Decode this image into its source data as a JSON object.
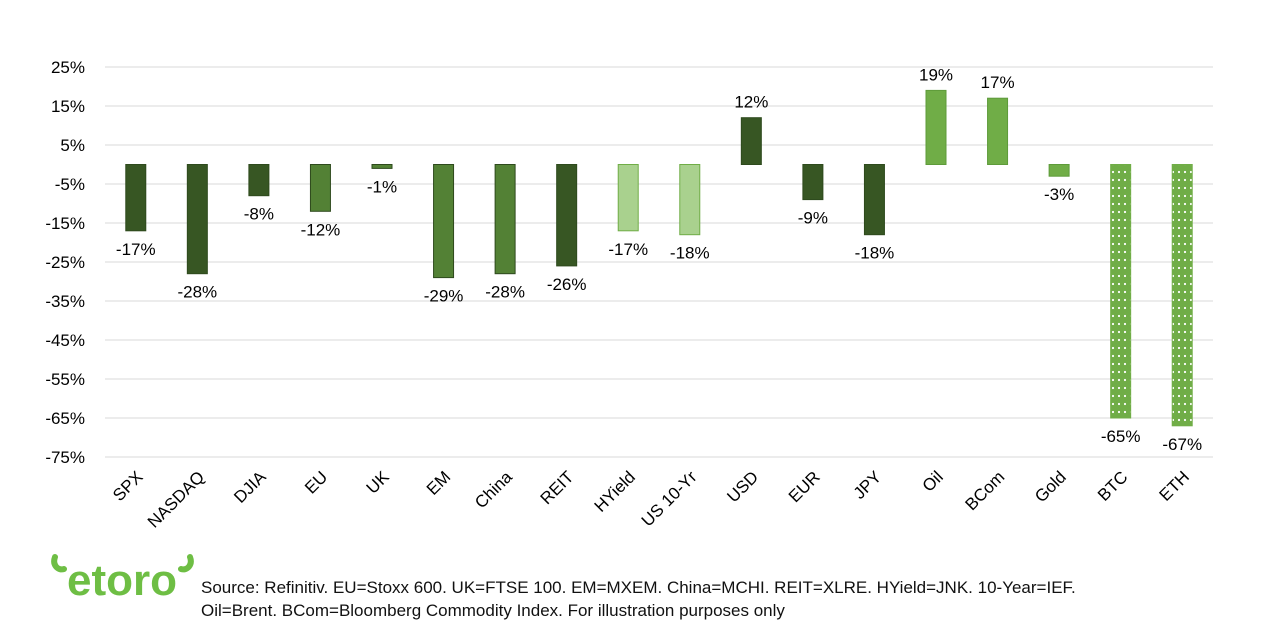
{
  "colors": {
    "dark": "#375623",
    "medium": "#538135",
    "bright": "#70AD47",
    "light": "#A9D18E",
    "grid": "#D9D9D9",
    "text": "#000000",
    "logo": "#6EBE44"
  },
  "chart_data": {
    "type": "bar",
    "categories": [
      "SPX",
      "NASDAQ",
      "DJIA",
      "EU",
      "UK",
      "EM",
      "China",
      "REIT",
      "HYield",
      "US 10-Yr",
      "USD",
      "EUR",
      "JPY",
      "Oil",
      "BCom",
      "Gold",
      "BTC",
      "ETH"
    ],
    "values": [
      -17,
      -28,
      -8,
      -12,
      -1,
      -29,
      -28,
      -26,
      -17,
      -18,
      12,
      -9,
      -18,
      19,
      17,
      -3,
      -65,
      -67
    ],
    "data_labels": [
      "-17%",
      "-28%",
      "-8%",
      "-12%",
      "-1%",
      "-29%",
      "-28%",
      "-26%",
      "-17%",
      "-18%",
      "12%",
      "-9%",
      "-18%",
      "19%",
      "17%",
      "-3%",
      "-65%",
      "-67%"
    ],
    "bar_colors": [
      "dark",
      "dark",
      "dark",
      "medium",
      "medium",
      "medium",
      "medium",
      "dark",
      "light",
      "light",
      "dark",
      "dark",
      "dark",
      "bright",
      "bright",
      "bright",
      "bright-dotted",
      "bright-dotted"
    ],
    "y_ticks": [
      25,
      15,
      5,
      -5,
      -15,
      -25,
      -35,
      -45,
      -55,
      -65,
      -75
    ],
    "y_tick_labels": [
      "25%",
      "15%",
      "5%",
      "-5%",
      "-15%",
      "-25%",
      "-35%",
      "-45%",
      "-55%",
      "-65%",
      "-75%"
    ],
    "ylim": [
      -75,
      25
    ],
    "grid": true,
    "title": "",
    "xlabel": "",
    "ylabel": ""
  },
  "footer": {
    "logo_text": "etoro",
    "source_line1": "Source: Refinitiv. EU=Stoxx 600. UK=FTSE 100. EM=MXEM. China=MCHI. REIT=XLRE. HYield=JNK. 10-Year=IEF.",
    "source_line2": "Oil=Brent. BCom=Bloomberg Commodity Index. For illustration purposes only"
  }
}
